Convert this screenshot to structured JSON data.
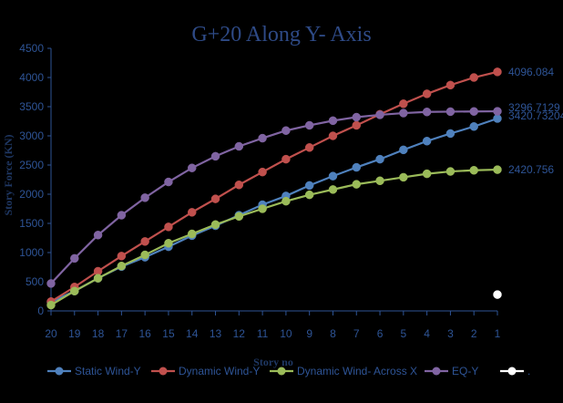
{
  "chart_data": {
    "type": "line",
    "title": "G+20 Along Y- Axis",
    "xlabel": "Story no",
    "ylabel": "Story Force (KN)",
    "categories": [
      "20",
      "19",
      "18",
      "17",
      "16",
      "15",
      "14",
      "13",
      "12",
      "11",
      "10",
      "9",
      "8",
      "7",
      "6",
      "5",
      "4",
      "3",
      "2",
      "1"
    ],
    "ylim": [
      0,
      4500
    ],
    "yticks": [
      0,
      500,
      1000,
      1500,
      2000,
      2500,
      3000,
      3500,
      4000,
      4500
    ],
    "grid": false,
    "legend_position": "bottom",
    "series": [
      {
        "name": "Static Wind-Y",
        "color": "#4f81bd",
        "values": [
          150,
          340,
          560,
          760,
          920,
          1100,
          1290,
          1460,
          1640,
          1820,
          1970,
          2150,
          2310,
          2460,
          2600,
          2760,
          2910,
          3040,
          3160,
          3296.7129
        ],
        "end_label": "3296.7129"
      },
      {
        "name": "Dynamic Wind-Y",
        "color": "#c0504d",
        "values": [
          160,
          410,
          680,
          940,
          1190,
          1440,
          1690,
          1920,
          2160,
          2380,
          2600,
          2800,
          3000,
          3180,
          3370,
          3550,
          3720,
          3870,
          4000,
          4096.084
        ],
        "end_label": "4096.084"
      },
      {
        "name": "Dynamic Wind- Across X",
        "color": "#9bbb59",
        "values": [
          100,
          340,
          560,
          770,
          960,
          1160,
          1320,
          1480,
          1620,
          1750,
          1880,
          1990,
          2080,
          2170,
          2230,
          2290,
          2350,
          2390,
          2410,
          2420.756
        ],
        "end_label": "2420.756"
      },
      {
        "name": "EQ-Y",
        "color": "#8064a2",
        "values": [
          470,
          900,
          1300,
          1640,
          1940,
          2210,
          2450,
          2650,
          2820,
          2960,
          3090,
          3180,
          3260,
          3320,
          3360,
          3390,
          3410,
          3415,
          3418,
          3420.73204
        ],
        "end_label": "3420.73204"
      },
      {
        "name": ".",
        "color": "#ffffff",
        "values": [
          null,
          null,
          null,
          null,
          null,
          null,
          null,
          null,
          null,
          null,
          null,
          null,
          null,
          null,
          null,
          null,
          null,
          null,
          null,
          280
        ]
      }
    ]
  }
}
